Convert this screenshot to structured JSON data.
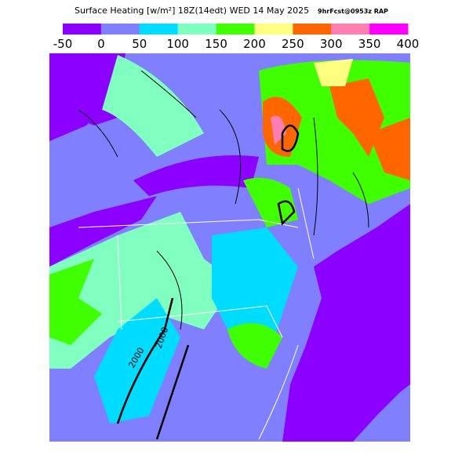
{
  "header": {
    "title": "Surface Heating [w/m²] 18Z(14edt) WED 14 May 2025",
    "source": "9hrFcst@0953z RAP"
  },
  "colorbar": {
    "labels": [
      "-50",
      "0",
      "50",
      "100",
      "150",
      "200",
      "250",
      "300",
      "350",
      "400"
    ],
    "colors": [
      "#8c00ff",
      "#8080ff",
      "#00dcff",
      "#80ffc0",
      "#40ff00",
      "#ffff80",
      "#ff6600",
      "#ff80b0",
      "#ff00ff"
    ]
  },
  "map": {
    "contour_labels": [
      "2000",
      "2000"
    ]
  }
}
